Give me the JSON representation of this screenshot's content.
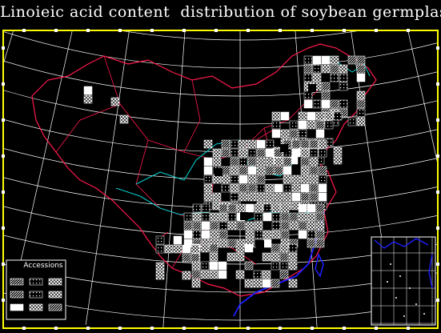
{
  "title": "Linoieic acid content  distribution of soybean germplasm",
  "legend": {
    "title": "Accessions",
    "swatches": [
      "hatch",
      "sparse",
      "dense",
      "hatch",
      "sparse",
      "dense",
      "cross",
      "dense",
      "hatch"
    ]
  },
  "colors": {
    "background": "#000000",
    "frame": "#ffff00",
    "graticule": "#ffffff",
    "province_border": "#ff1a4d",
    "river": "#00c8c8",
    "coast": "#1e1eff",
    "cells": "#ffffff"
  }
}
